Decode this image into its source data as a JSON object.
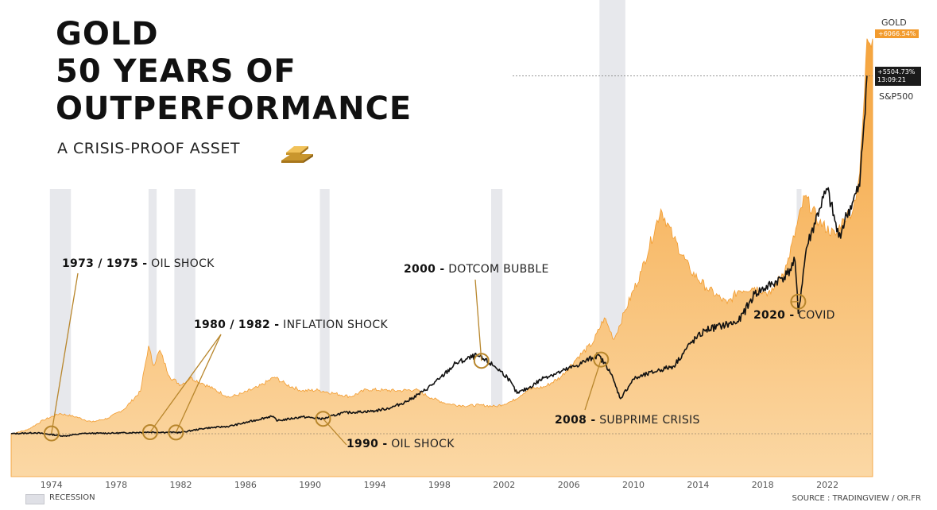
{
  "header": {
    "title_lines": [
      "GOLD",
      "50 YEARS OF",
      "OUTPERFORMANCE"
    ],
    "subtitle": "A CRISIS-PROOF ASSET",
    "icon": "gold-bar-icon"
  },
  "chart_data": {
    "type": "area",
    "xlim": [
      1971.5,
      2024.8
    ],
    "ylim": [
      -0.5,
      62
    ],
    "x_ticks": [
      "1974",
      "1978",
      "1982",
      "1986",
      "1990",
      "1994",
      "1998",
      "2002",
      "2006",
      "2010",
      "2014",
      "2018",
      "2022"
    ],
    "recessions": [
      [
        1973.9,
        1975.2
      ],
      [
        1980.0,
        1980.5
      ],
      [
        1981.6,
        1982.9
      ],
      [
        1990.6,
        1991.2
      ],
      [
        2001.2,
        2001.9
      ],
      [
        2007.9,
        2009.5
      ],
      [
        2020.1,
        2020.4
      ]
    ],
    "series": [
      {
        "name": "GOLD",
        "color": "#f29b2e",
        "points": [
          [
            1971.5,
            0
          ],
          [
            1972.5,
            0.6
          ],
          [
            1973.5,
            2.1
          ],
          [
            1974.5,
            3.1
          ],
          [
            1975.5,
            2.6
          ],
          [
            1976.5,
            1.8
          ],
          [
            1977.5,
            2.4
          ],
          [
            1978.5,
            3.8
          ],
          [
            1979.5,
            6.5
          ],
          [
            1980.0,
            13.5
          ],
          [
            1980.3,
            10.5
          ],
          [
            1980.7,
            12.8
          ],
          [
            1981.3,
            8.8
          ],
          [
            1982.0,
            7.5
          ],
          [
            1982.6,
            8.6
          ],
          [
            1983.3,
            7.8
          ],
          [
            1984.0,
            6.9
          ],
          [
            1985.0,
            5.6
          ],
          [
            1985.8,
            6.2
          ],
          [
            1986.8,
            7.2
          ],
          [
            1987.8,
            8.7
          ],
          [
            1988.5,
            7.6
          ],
          [
            1989.5,
            6.6
          ],
          [
            1990.5,
            6.7
          ],
          [
            1991.5,
            6.2
          ],
          [
            1992.5,
            5.7
          ],
          [
            1993.5,
            6.8
          ],
          [
            1994.5,
            6.7
          ],
          [
            1995.5,
            6.6
          ],
          [
            1996.5,
            6.8
          ],
          [
            1997.5,
            5.5
          ],
          [
            1998.5,
            4.6
          ],
          [
            1999.5,
            4.3
          ],
          [
            2000.5,
            4.4
          ],
          [
            2001.5,
            4.2
          ],
          [
            2002.5,
            5.0
          ],
          [
            2003.5,
            6.8
          ],
          [
            2004.5,
            7.2
          ],
          [
            2005.5,
            8.7
          ],
          [
            2006.5,
            11.6
          ],
          [
            2007.5,
            14.0
          ],
          [
            2008.2,
            17.8
          ],
          [
            2008.8,
            14.5
          ],
          [
            2009.5,
            19.0
          ],
          [
            2010.5,
            25.0
          ],
          [
            2011.7,
            34.5
          ],
          [
            2012.5,
            30.0
          ],
          [
            2013.5,
            25.2
          ],
          [
            2014.5,
            22.5
          ],
          [
            2015.8,
            20.0
          ],
          [
            2016.5,
            22.0
          ],
          [
            2017.5,
            22.5
          ],
          [
            2018.5,
            21.5
          ],
          [
            2019.5,
            26.0
          ],
          [
            2020.6,
            36.5
          ],
          [
            2021.5,
            32.5
          ],
          [
            2022.5,
            30.5
          ],
          [
            2023.0,
            33.0
          ],
          [
            2023.6,
            34.5
          ],
          [
            2024.0,
            40.0
          ],
          [
            2024.3,
            52.5
          ],
          [
            2024.45,
            60.7
          ],
          [
            2024.8,
            60.7
          ]
        ]
      },
      {
        "name": "S&P500",
        "color": "#111111",
        "points": [
          [
            1971.5,
            0
          ],
          [
            1973.0,
            0.15
          ],
          [
            1974.8,
            -0.35
          ],
          [
            1976.0,
            0.05
          ],
          [
            1978.0,
            0.1
          ],
          [
            1980.0,
            0.25
          ],
          [
            1982.0,
            0.2
          ],
          [
            1983.5,
            0.85
          ],
          [
            1985.0,
            1.15
          ],
          [
            1986.0,
            1.7
          ],
          [
            1987.6,
            2.7
          ],
          [
            1988.0,
            2.0
          ],
          [
            1989.5,
            2.6
          ],
          [
            1990.8,
            2.3
          ],
          [
            1992.0,
            3.2
          ],
          [
            1994.0,
            3.5
          ],
          [
            1995.0,
            4.0
          ],
          [
            1996.0,
            5.0
          ],
          [
            1997.0,
            6.5
          ],
          [
            1998.0,
            8.4
          ],
          [
            1999.0,
            10.8
          ],
          [
            2000.3,
            12.0
          ],
          [
            2001.4,
            10.4
          ],
          [
            2002.2,
            8.7
          ],
          [
            2002.8,
            6.2
          ],
          [
            2003.5,
            7.0
          ],
          [
            2004.5,
            8.7
          ],
          [
            2005.5,
            9.5
          ],
          [
            2006.5,
            10.5
          ],
          [
            2007.8,
            12.1
          ],
          [
            2008.5,
            9.9
          ],
          [
            2009.2,
            5.4
          ],
          [
            2010.0,
            8.4
          ],
          [
            2011.5,
            9.7
          ],
          [
            2012.5,
            10.4
          ],
          [
            2013.5,
            13.8
          ],
          [
            2014.5,
            16.0
          ],
          [
            2015.5,
            16.6
          ],
          [
            2016.5,
            17.2
          ],
          [
            2017.5,
            21.5
          ],
          [
            2018.6,
            23.0
          ],
          [
            2019.5,
            24.5
          ],
          [
            2020.0,
            26.5
          ],
          [
            2020.2,
            18.5
          ],
          [
            2020.7,
            28.5
          ],
          [
            2021.5,
            34.5
          ],
          [
            2022.0,
            37.5
          ],
          [
            2022.7,
            30.2
          ],
          [
            2023.2,
            33.5
          ],
          [
            2023.6,
            35.8
          ],
          [
            2024.0,
            38.0
          ],
          [
            2024.45,
            55.0
          ]
        ]
      }
    ],
    "events": [
      {
        "label_bold": "1973 / 1975 -",
        "label": " OIL SHOCK",
        "markers": [
          [
            1974.0,
            0.05
          ]
        ]
      },
      {
        "label_bold": "1980 / 1982 -",
        "label": " INFLATION SHOCK",
        "markers": [
          [
            1980.1,
            0.25
          ],
          [
            1981.7,
            0.2
          ]
        ]
      },
      {
        "label_bold": "1990 -",
        "label": " OIL SHOCK",
        "markers": [
          [
            1990.8,
            2.3
          ]
        ]
      },
      {
        "label_bold": "2000 -",
        "label": " DOTCOM BUBBLE",
        "markers": [
          [
            2000.6,
            11.2
          ]
        ]
      },
      {
        "label_bold": "2008 -",
        "label": " SUBPRIME CRISIS",
        "markers": [
          [
            2008.0,
            11.4
          ]
        ]
      },
      {
        "label_bold": "2020 -",
        "label": " COVID",
        "markers": [
          [
            2020.2,
            20.3
          ]
        ]
      }
    ],
    "gold_tag": "GOLD",
    "gold_value": "+6066.54%",
    "spx_value": "+5504.73%",
    "spx_time": "13:09:21",
    "spx_tag": "S&P500",
    "legend": "RECESSION",
    "source": "SOURCE : TRADINGVIEW / OR.FR"
  }
}
